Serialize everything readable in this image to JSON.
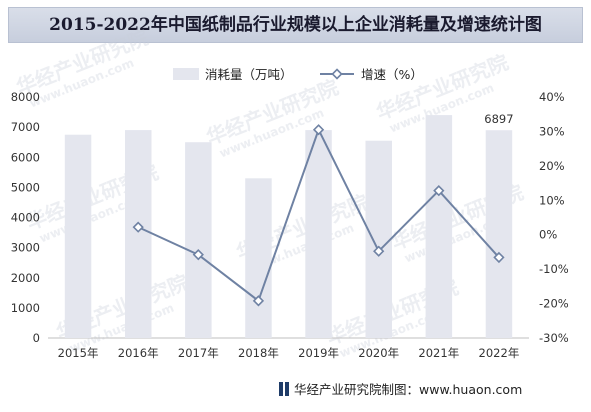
{
  "chart_data": {
    "type": "bar+line",
    "title": "2015-2022年中国纸制品行业规模以上企业消耗量及增速统计图",
    "categories": [
      "2015年",
      "2016年",
      "2017年",
      "2018年",
      "2019年",
      "2020年",
      "2021年",
      "2022年"
    ],
    "series": [
      {
        "name": "消耗量（万吨）",
        "type": "bar",
        "axis": "left",
        "values": [
          6750,
          6900,
          6500,
          5300,
          6900,
          6550,
          7400,
          6897
        ],
        "color": "#e4e6ee"
      },
      {
        "name": "增速（%）",
        "type": "line",
        "axis": "right",
        "values": [
          null,
          2.2,
          -5.8,
          -19.2,
          30.5,
          -4.8,
          12.8,
          -6.6
        ],
        "color": "#6f82a3"
      }
    ],
    "data_labels": [
      {
        "category": "2022年",
        "text": "6897"
      }
    ],
    "y_left": {
      "min": 0,
      "max": 8000,
      "ticks": [
        "0",
        "1000",
        "2000",
        "3000",
        "4000",
        "5000",
        "6000",
        "7000",
        "8000"
      ]
    },
    "y_right": {
      "min": -30,
      "max": 40,
      "ticks": [
        "-30%",
        "-20%",
        "-10%",
        "0%",
        "10%",
        "20%",
        "30%",
        "40%"
      ]
    },
    "legend_position": "top-center",
    "grid": false
  },
  "footer": {
    "source": "华经产业研究院制图：www.huaon.com"
  },
  "watermarks": [
    "华经产业研究院",
    "www.huaon.com"
  ]
}
